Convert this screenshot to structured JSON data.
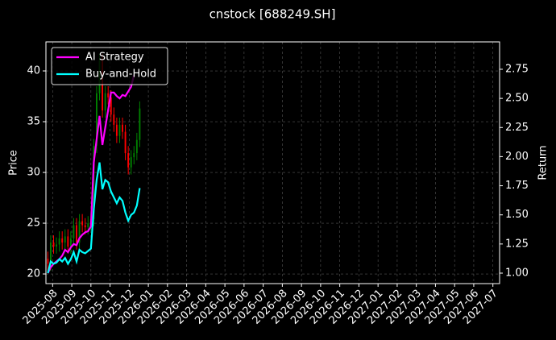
{
  "chart_data": {
    "type": "candlestick",
    "title": "cnstock [688249.SH]",
    "ylabel": "Price",
    "y2label": "Return",
    "x": [
      -0.25,
      -0.1,
      0.05,
      0.2,
      0.35,
      0.5,
      0.65,
      0.8,
      0.95,
      1.1,
      1.25,
      1.4,
      1.55,
      1.7,
      1.85,
      2.0,
      2.15,
      2.3,
      2.45,
      2.6,
      2.75,
      2.9,
      3.05,
      3.2,
      3.35,
      3.5,
      3.65,
      3.8,
      3.95,
      4.1,
      4.25,
      4.4,
      4.55
    ],
    "open": [
      21.5,
      21.0,
      23.1,
      22.7,
      22.9,
      23.5,
      23.1,
      23.7,
      22.7,
      23.5,
      24.8,
      23.1,
      25.2,
      24.8,
      24.6,
      25.0,
      25.4,
      32.6,
      37.8,
      41.0,
      36.1,
      37.8,
      37.4,
      35.7,
      34.7,
      33.6,
      34.7,
      34.0,
      31.9,
      30.5,
      31.5,
      31.9,
      33.2
    ],
    "high": [
      22.2,
      23.8,
      23.8,
      23.6,
      24.2,
      24.2,
      24.4,
      24.4,
      24.2,
      25.5,
      25.5,
      25.9,
      25.9,
      25.5,
      25.7,
      26.1,
      33.3,
      38.5,
      41.7,
      41.7,
      38.5,
      38.5,
      38.1,
      36.4,
      35.4,
      35.4,
      35.4,
      34.7,
      32.6,
      32.2,
      32.6,
      33.9,
      37.0
    ],
    "low": [
      20.3,
      20.3,
      22.0,
      22.0,
      22.2,
      22.4,
      22.4,
      22.0,
      22.0,
      22.8,
      22.4,
      22.4,
      24.1,
      23.9,
      23.9,
      24.3,
      24.7,
      31.9,
      37.1,
      35.4,
      35.4,
      36.7,
      35.0,
      34.0,
      32.9,
      32.9,
      33.3,
      31.2,
      29.8,
      29.8,
      30.8,
      31.2,
      32.5
    ],
    "close": [
      21.0,
      23.1,
      22.7,
      22.9,
      23.5,
      23.1,
      23.7,
      22.7,
      23.5,
      24.8,
      23.1,
      25.2,
      24.8,
      24.6,
      25.0,
      25.4,
      32.6,
      37.8,
      41.0,
      36.1,
      37.8,
      37.4,
      35.7,
      34.7,
      33.6,
      34.7,
      34.0,
      31.9,
      30.5,
      31.5,
      31.9,
      33.2,
      36.3
    ],
    "up_color": "#008000",
    "down_color": "#ff0000",
    "series": [
      {
        "name": "AI Strategy",
        "color": "#ff00ff",
        "axis": "y2",
        "values": [
          1.0,
          1.05,
          1.08,
          1.1,
          1.12,
          1.15,
          1.2,
          1.18,
          1.22,
          1.25,
          1.24,
          1.3,
          1.33,
          1.35,
          1.36,
          1.4,
          1.95,
          2.15,
          2.35,
          2.1,
          2.25,
          2.4,
          2.55,
          2.55,
          2.52,
          2.5,
          2.53,
          2.52,
          2.56,
          2.6,
          2.7,
          null,
          null
        ]
      },
      {
        "name": "Buy-and-Hold",
        "color": "#00ffff",
        "axis": "y2",
        "values": [
          1.0,
          1.1,
          1.08,
          1.09,
          1.12,
          1.1,
          1.13,
          1.08,
          1.12,
          1.18,
          1.1,
          1.2,
          1.18,
          1.17,
          1.19,
          1.21,
          1.55,
          1.8,
          1.95,
          1.72,
          1.8,
          1.78,
          1.7,
          1.65,
          1.6,
          1.65,
          1.62,
          1.52,
          1.45,
          1.5,
          1.52,
          1.58,
          1.73
        ]
      }
    ],
    "xlim": [
      -0.35,
      23.35
    ],
    "xticks": [
      {
        "value": 0,
        "label": "2025-08"
      },
      {
        "value": 1,
        "label": "2025-09"
      },
      {
        "value": 2,
        "label": "2025-10"
      },
      {
        "value": 3,
        "label": "2025-11"
      },
      {
        "value": 4,
        "label": "2025-12"
      },
      {
        "value": 5,
        "label": "2026-01"
      },
      {
        "value": 6,
        "label": "2026-02"
      },
      {
        "value": 7,
        "label": "2026-03"
      },
      {
        "value": 8,
        "label": "2026-04"
      },
      {
        "value": 9,
        "label": "2026-05"
      },
      {
        "value": 10,
        "label": "2026-06"
      },
      {
        "value": 11,
        "label": "2026-07"
      },
      {
        "value": 12,
        "label": "2026-08"
      },
      {
        "value": 13,
        "label": "2026-09"
      },
      {
        "value": 14,
        "label": "2026-10"
      },
      {
        "value": 15,
        "label": "2026-11"
      },
      {
        "value": 16,
        "label": "2026-12"
      },
      {
        "value": 17,
        "label": "2027-01"
      },
      {
        "value": 18,
        "label": "2027-02"
      },
      {
        "value": 19,
        "label": "2027-03"
      },
      {
        "value": 20,
        "label": "2027-04"
      },
      {
        "value": 21,
        "label": "2027-05"
      },
      {
        "value": 22,
        "label": "2027-06"
      },
      {
        "value": 23,
        "label": "2027-07"
      }
    ],
    "ylim": [
      19.05,
      42.86
    ],
    "yticks": [
      20,
      25,
      30,
      35,
      40
    ],
    "y2lim": [
      0.91,
      2.985
    ],
    "y2ticks": [
      {
        "value": 1,
        "label": "1.00"
      },
      1.25,
      {
        "value": 1.5,
        "label": "1.50"
      },
      1.75,
      {
        "value": 2,
        "label": "2.00"
      },
      2.25,
      {
        "value": 2.5,
        "label": "2.50"
      },
      2.75
    ],
    "grid": true,
    "legend": "upper left"
  }
}
